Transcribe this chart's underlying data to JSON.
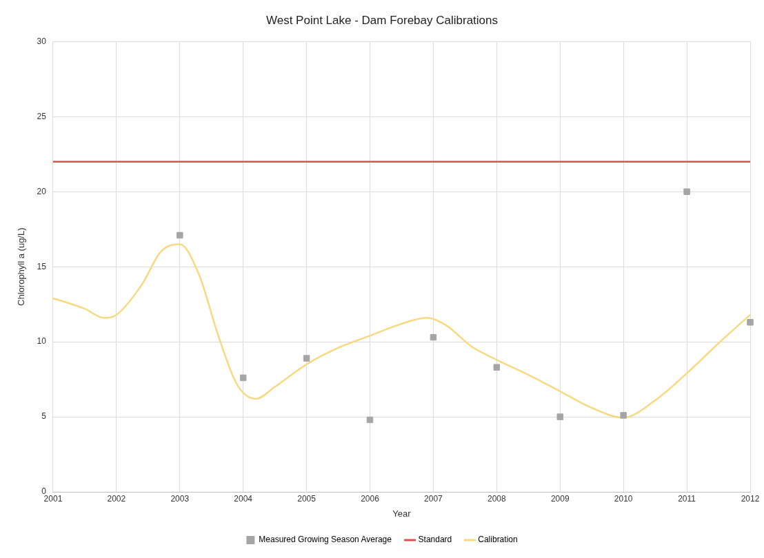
{
  "chart_data": {
    "type": "scatter",
    "title": "West Point Lake - Dam Forebay Calibrations",
    "xlabel": "Year",
    "ylabel": "Chlorophyll a (ug/L)",
    "xlim": [
      2001,
      2012
    ],
    "xticks": [
      2001,
      2002,
      2003,
      2004,
      2005,
      2006,
      2007,
      2008,
      2009,
      2010,
      2011,
      2012
    ],
    "ylim": [
      0,
      30
    ],
    "yticks": [
      0,
      5,
      10,
      15,
      20,
      25,
      30
    ],
    "grid": true,
    "legend": "bottom",
    "series": [
      {
        "name": "Measured Growing Season Average",
        "marker": "square",
        "color": "#a5a5a5",
        "x": [
          2003,
          2004,
          2005,
          2006,
          2007,
          2008,
          2009,
          2010,
          2011,
          2012
        ],
        "values": [
          17.1,
          7.6,
          8.9,
          4.8,
          10.3,
          8.3,
          5.0,
          5.1,
          20.0,
          11.3
        ]
      },
      {
        "name": "Standard",
        "type": "line",
        "color": "#e0504a",
        "x": [
          2001,
          2012
        ],
        "values": [
          22,
          22
        ]
      },
      {
        "name": "Calibration",
        "type": "line",
        "color": "#f7d981",
        "x": [
          2001,
          2001.5,
          2001.8,
          2002,
          2002.4,
          2002.7,
          2003,
          2003.3,
          2003.6,
          2003.85,
          2004,
          2004.2,
          2004.5,
          2005,
          2005.5,
          2006,
          2006.5,
          2006.9,
          2007.2,
          2007.6,
          2008,
          2008.5,
          2009,
          2009.5,
          2010,
          2010.5,
          2011,
          2011.5,
          2012
        ],
        "values": [
          12.9,
          12.2,
          11.6,
          11.8,
          13.8,
          16.0,
          16.5,
          14.5,
          10.5,
          7.6,
          6.6,
          6.2,
          7.0,
          8.5,
          9.6,
          10.4,
          11.2,
          11.6,
          11.1,
          9.7,
          8.8,
          7.8,
          6.7,
          5.6,
          4.95,
          6.1,
          7.9,
          9.9,
          11.8
        ]
      }
    ]
  }
}
